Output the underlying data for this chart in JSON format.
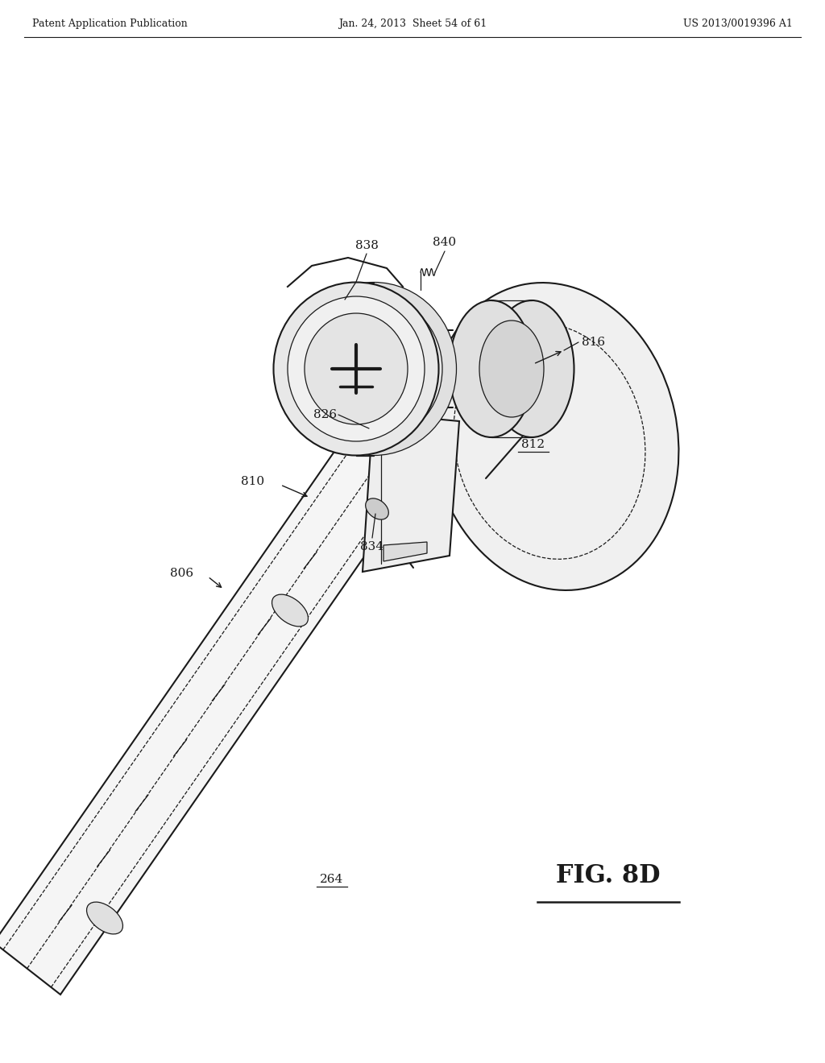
{
  "title_left": "Patent Application Publication",
  "title_center": "Jan. 24, 2013  Sheet 54 of 61",
  "title_right": "US 2013/0019396 A1",
  "fig_label": "FIG. 8D",
  "background_color": "#ffffff",
  "line_color": "#1a1a1a",
  "text_color": "#1a1a1a",
  "label_fontsize": 11,
  "header_fontsize": 9,
  "figlabel_fontsize": 22
}
